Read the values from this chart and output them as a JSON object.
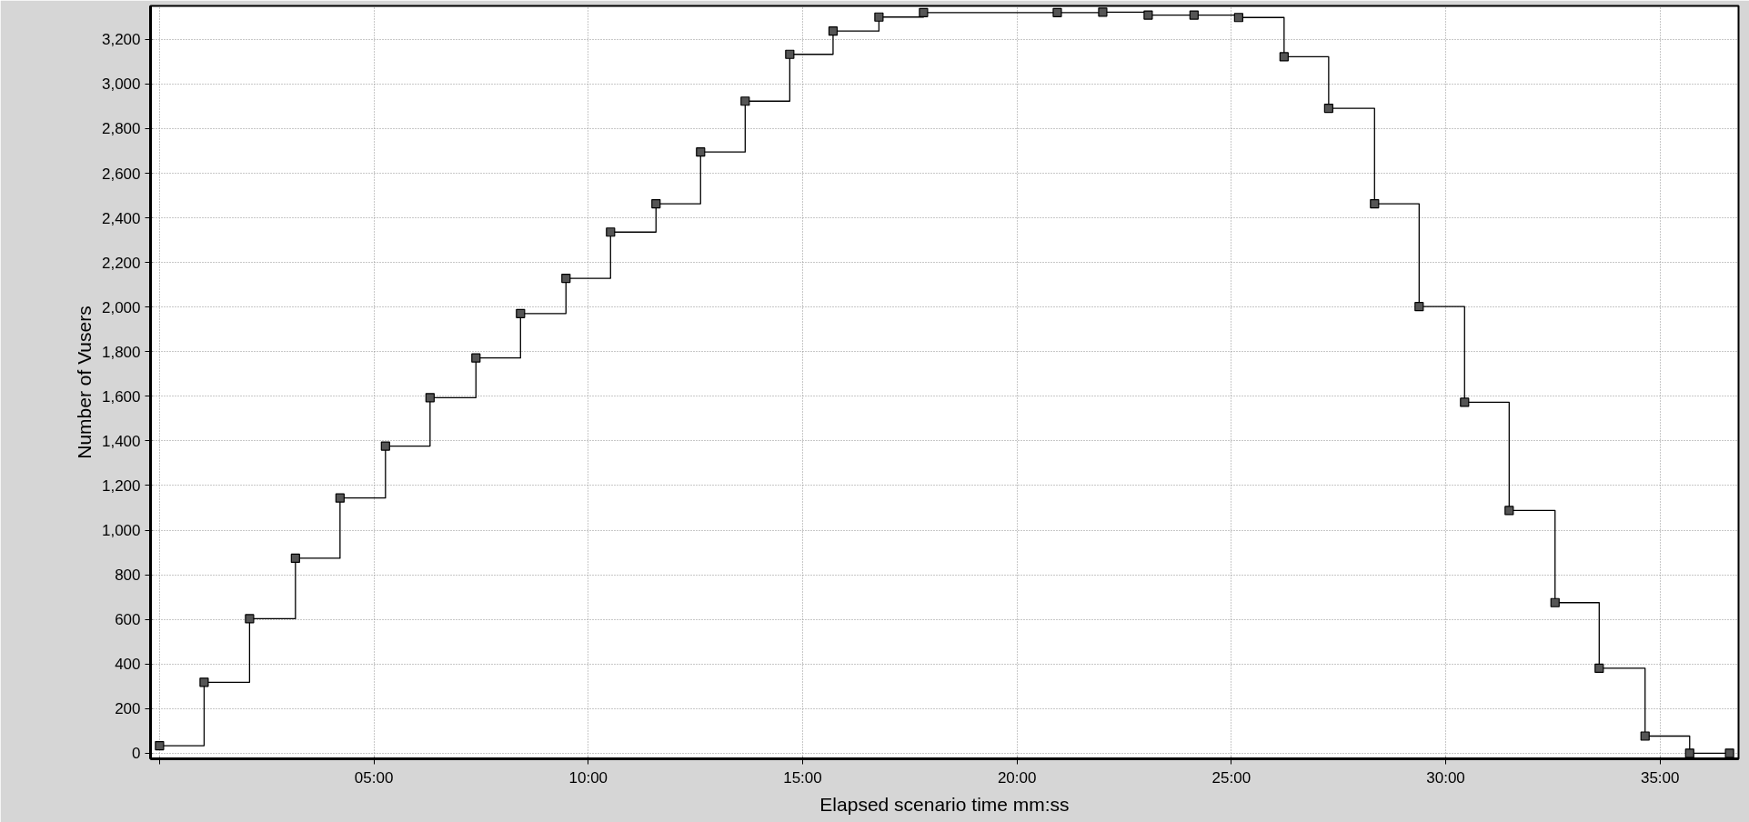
{
  "chart_data": {
    "type": "step",
    "xlabel": "Elapsed scenario time mm:ss",
    "ylabel": "Number of Vusers",
    "x": [
      0,
      1.04,
      2.1,
      3.17,
      4.21,
      5.27,
      6.31,
      7.38,
      8.42,
      9.48,
      10.52,
      11.58,
      12.62,
      13.66,
      14.7,
      15.71,
      16.78,
      17.82,
      20.94,
      22.0,
      23.06,
      24.13,
      25.17,
      26.23,
      27.27,
      28.34,
      29.38,
      30.44,
      31.48,
      32.55,
      33.58,
      34.65,
      35.69,
      36.62
    ],
    "series": [
      {
        "color": "#000000",
        "values": [
          34,
          318,
          603,
          874,
          1144,
          1377,
          1594,
          1772,
          1971,
          2129,
          2336,
          2463,
          2695,
          2923,
          3133,
          3237,
          3300,
          3320,
          3320,
          3322,
          3309,
          3309,
          3298,
          3122,
          2891,
          2463,
          2002,
          1573,
          1088,
          675,
          381,
          77,
          0,
          0
        ]
      }
    ],
    "xlim": [
      -0.21,
      36.83
    ],
    "ylim": [
      -25,
      3350
    ],
    "xticks": [
      {
        "value": 0,
        "label": null
      },
      {
        "value": 5,
        "label": "05:00"
      },
      {
        "value": 10,
        "label": "10:00"
      },
      {
        "value": 15,
        "label": "15:00"
      },
      {
        "value": 20,
        "label": "20:00"
      },
      {
        "value": 25,
        "label": "25:00"
      },
      {
        "value": 30,
        "label": "30:00"
      },
      {
        "value": 35,
        "label": "35:00"
      }
    ],
    "yticks": [
      0,
      200,
      400,
      600,
      800,
      {
        "value": 1000,
        "label": "1,000"
      },
      {
        "value": 1200,
        "label": "1,200"
      },
      {
        "value": 1400,
        "label": "1,400"
      },
      {
        "value": 1600,
        "label": "1,600"
      },
      {
        "value": 1800,
        "label": "1,800"
      },
      {
        "value": 2000,
        "label": "2,000"
      },
      {
        "value": 2200,
        "label": "2,200"
      },
      {
        "value": 2400,
        "label": "2,400"
      },
      {
        "value": 2600,
        "label": "2,600"
      },
      {
        "value": 2800,
        "label": "2,800"
      },
      {
        "value": 3000,
        "label": "3,000"
      },
      {
        "value": 3200,
        "label": "3,200"
      }
    ],
    "grid": true,
    "marker": "square",
    "line_style": "solid"
  }
}
